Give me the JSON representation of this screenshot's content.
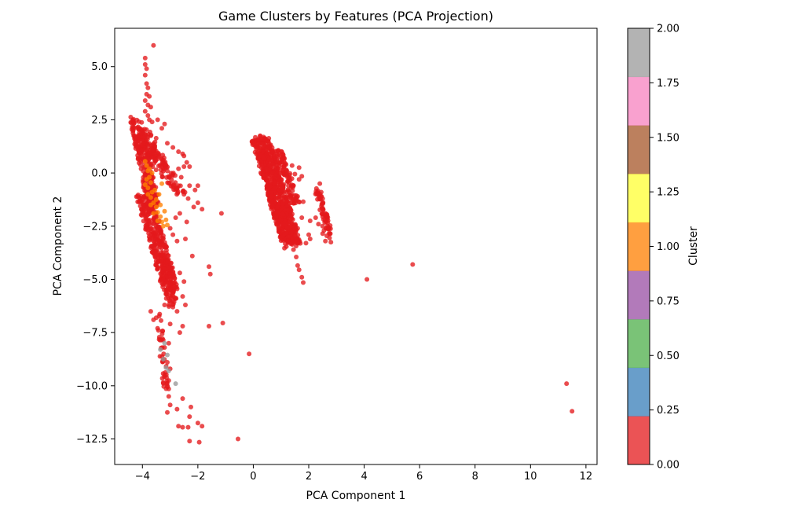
{
  "chart_data": {
    "type": "scatter",
    "title": "Game Clusters by Features (PCA Projection)",
    "xlabel": "PCA Component 1",
    "ylabel": "PCA Component 2",
    "xlim": [
      -5,
      12.4
    ],
    "ylim": [
      -13.7,
      6.8
    ],
    "xticks": [
      -4,
      -2,
      0,
      2,
      4,
      6,
      8,
      10,
      12
    ],
    "xtick_labels": [
      "−4",
      "−2",
      "0",
      "2",
      "4",
      "6",
      "8",
      "10",
      "12"
    ],
    "yticks": [
      5.0,
      2.5,
      0.0,
      -2.5,
      -5.0,
      -7.5,
      -10.0,
      -12.5
    ],
    "ytick_labels": [
      "5.0",
      "2.5",
      "0.0",
      "−2.5",
      "−5.0",
      "−7.5",
      "−10.0",
      "−12.5"
    ],
    "grid": false,
    "colorbar": {
      "label": "Cluster",
      "range": [
        0.0,
        2.0
      ],
      "ticks": [
        0.0,
        0.25,
        0.5,
        0.75,
        1.0,
        1.25,
        1.5,
        1.75,
        2.0
      ],
      "tick_labels": [
        "0.00",
        "0.25",
        "0.50",
        "0.75",
        "1.00",
        "1.25",
        "1.50",
        "1.75",
        "2.00"
      ],
      "colors": [
        "#e41a1c",
        "#377eb8",
        "#4daf4a",
        "#984ea3",
        "#ff7f00",
        "#ffff33",
        "#a65628",
        "#f781bf",
        "#999999"
      ]
    },
    "series": [
      {
        "cluster": 0,
        "color": "#e41a1c",
        "points": [
          [
            -3.9,
            5.4
          ],
          [
            -3.9,
            5.1
          ],
          [
            -3.85,
            4.9
          ],
          [
            -3.9,
            4.6
          ],
          [
            -3.85,
            4.2
          ],
          [
            -3.8,
            4.0
          ],
          [
            -3.85,
            3.7
          ],
          [
            -3.9,
            3.4
          ],
          [
            -3.75,
            3.6
          ],
          [
            -3.8,
            3.2
          ],
          [
            -3.7,
            3.1
          ],
          [
            -3.6,
            6.0
          ],
          [
            -3.9,
            2.9
          ],
          [
            -3.8,
            2.7
          ],
          [
            -3.75,
            2.5
          ],
          [
            -3.65,
            2.4
          ],
          [
            -3.45,
            2.5
          ],
          [
            -3.2,
            2.3
          ],
          [
            -3.3,
            2.1
          ],
          [
            -3.1,
            1.4
          ],
          [
            -2.9,
            1.2
          ],
          [
            -2.7,
            1.0
          ],
          [
            -2.55,
            0.9
          ],
          [
            -2.5,
            0.8
          ],
          [
            -2.7,
            0.2
          ],
          [
            -2.5,
            0.3
          ],
          [
            -2.4,
            0.5
          ],
          [
            -2.3,
            0.3
          ],
          [
            -2.6,
            -0.2
          ],
          [
            -2.3,
            -0.6
          ],
          [
            -2.1,
            -0.8
          ],
          [
            -2.0,
            -0.6
          ],
          [
            -2.5,
            -1.0
          ],
          [
            -2.35,
            -1.2
          ],
          [
            -2.15,
            -1.6
          ],
          [
            -2.0,
            -1.4
          ],
          [
            -2.65,
            -1.9
          ],
          [
            -2.4,
            -2.3
          ],
          [
            -2.8,
            -2.1
          ],
          [
            -1.85,
            -1.7
          ],
          [
            -1.15,
            -1.9
          ],
          [
            -3.0,
            -2.6
          ],
          [
            -2.9,
            -2.9
          ],
          [
            -2.75,
            -3.2
          ],
          [
            -2.45,
            -3.1
          ],
          [
            -2.2,
            -3.9
          ],
          [
            -1.6,
            -4.4
          ],
          [
            -1.55,
            -4.75
          ],
          [
            -2.5,
            -5.1
          ],
          [
            -2.65,
            -4.7
          ],
          [
            -2.55,
            -5.8
          ],
          [
            -2.45,
            -6.2
          ],
          [
            -2.75,
            -6.5
          ],
          [
            -2.9,
            -6.3
          ],
          [
            -3.2,
            -6.2
          ],
          [
            -3.5,
            -6.8
          ],
          [
            -3.7,
            -6.5
          ],
          [
            -3.6,
            -6.9
          ],
          [
            -3.0,
            -7.1
          ],
          [
            -2.55,
            -7.2
          ],
          [
            -2.65,
            -7.5
          ],
          [
            -3.05,
            -8.0
          ],
          [
            -3.2,
            -8.2
          ],
          [
            -3.25,
            -7.85
          ],
          [
            -3.1,
            -8.9
          ],
          [
            -3.0,
            -9.2
          ],
          [
            -3.2,
            -9.5
          ],
          [
            -3.05,
            -9.75
          ],
          [
            -1.6,
            -7.2
          ],
          [
            -1.1,
            -7.05
          ],
          [
            -3.25,
            -9.85
          ],
          [
            -3.05,
            -10.15
          ],
          [
            -3.05,
            -10.5
          ],
          [
            -3.0,
            -10.9
          ],
          [
            -2.75,
            -11.1
          ],
          [
            -2.55,
            -10.6
          ],
          [
            -2.25,
            -11.0
          ],
          [
            -2.3,
            -11.45
          ],
          [
            -3.1,
            -11.25
          ],
          [
            -2.7,
            -11.9
          ],
          [
            -2.55,
            -11.95
          ],
          [
            -2.35,
            -11.95
          ],
          [
            -2.0,
            -11.75
          ],
          [
            -1.85,
            -11.9
          ],
          [
            -2.3,
            -12.6
          ],
          [
            -1.95,
            -12.65
          ],
          [
            -0.55,
            -12.5
          ],
          [
            -0.15,
            -8.5
          ],
          [
            4.1,
            -5.0
          ],
          [
            5.75,
            -4.3
          ],
          [
            11.3,
            -9.9
          ],
          [
            11.5,
            -11.2
          ],
          [
            1.15,
            0.45
          ],
          [
            1.4,
            0.35
          ],
          [
            1.65,
            0.25
          ],
          [
            1.5,
            -0.05
          ],
          [
            1.65,
            -0.3
          ],
          [
            1.75,
            -0.15
          ],
          [
            1.45,
            -0.6
          ],
          [
            1.2,
            -1.3
          ],
          [
            1.6,
            -1.1
          ],
          [
            1.8,
            -1.35
          ],
          [
            1.75,
            -2.1
          ],
          [
            2.05,
            -2.25
          ],
          [
            2.25,
            -2.1
          ],
          [
            2.35,
            -2.4
          ],
          [
            1.6,
            -2.6
          ],
          [
            1.5,
            -2.95
          ],
          [
            2.0,
            -2.9
          ],
          [
            2.5,
            -2.5
          ],
          [
            2.55,
            -2.7
          ],
          [
            2.7,
            -2.6
          ],
          [
            2.65,
            -2.95
          ],
          [
            2.5,
            -2.85
          ],
          [
            2.75,
            -3.05
          ],
          [
            2.6,
            -3.2
          ],
          [
            2.4,
            -0.5
          ],
          [
            2.45,
            -0.9
          ],
          [
            2.5,
            -1.2
          ],
          [
            2.6,
            -1.9
          ],
          [
            1.25,
            -3.2
          ],
          [
            1.45,
            -3.6
          ],
          [
            1.55,
            -3.95
          ],
          [
            1.6,
            -4.35
          ],
          [
            1.65,
            -4.55
          ],
          [
            1.75,
            -4.9
          ],
          [
            1.8,
            -5.15
          ],
          [
            2.05,
            -3.1
          ],
          [
            1.9,
            -3.3
          ],
          [
            2.8,
            -3.25
          ]
        ],
        "bands": [
          {
            "x0": -4.25,
            "y0": 2.5,
            "x1": -3.6,
            "y1": -1.5,
            "x_spread": 0.22,
            "n": 230
          },
          {
            "x0": -4.0,
            "y0": 2.0,
            "x1": -3.4,
            "y1": 0.2,
            "x_spread": 0.35,
            "n": 90
          },
          {
            "x0": -3.7,
            "y0": 1.0,
            "x1": -2.6,
            "y1": -1.0,
            "x_spread": 0.25,
            "n": 70
          },
          {
            "x0": -3.95,
            "y0": -1.0,
            "x1": -2.95,
            "y1": -5.6,
            "x_spread": 0.28,
            "n": 360
          },
          {
            "x0": -3.3,
            "y0": -4.0,
            "x1": -2.9,
            "y1": -6.2,
            "x_spread": 0.18,
            "n": 60
          },
          {
            "x0": -3.45,
            "y0": -6.3,
            "x1": -3.15,
            "y1": -10.3,
            "x_spread": 0.1,
            "n": 38
          },
          {
            "x0": 0.25,
            "y0": 1.65,
            "x1": 1.4,
            "y1": -3.4,
            "x_spread": 0.34,
            "n": 700
          },
          {
            "x0": 0.9,
            "y0": 1.0,
            "x1": 1.55,
            "y1": -1.5,
            "x_spread": 0.14,
            "n": 90
          },
          {
            "x0": 0.6,
            "y0": -1.0,
            "x1": 1.5,
            "y1": -3.2,
            "x_spread": 0.14,
            "n": 60
          },
          {
            "x0": 2.3,
            "y0": -0.8,
            "x1": 2.75,
            "y1": -2.8,
            "x_spread": 0.1,
            "n": 60
          }
        ]
      },
      {
        "cluster": 1,
        "color": "#ff7f00",
        "points": [
          [
            -3.9,
            0.55
          ],
          [
            -3.85,
            0.35
          ],
          [
            -3.8,
            0.1
          ],
          [
            -3.75,
            -0.2
          ],
          [
            -3.7,
            -0.45
          ],
          [
            -3.8,
            -0.7
          ],
          [
            -3.65,
            -0.9
          ],
          [
            -3.7,
            -1.15
          ],
          [
            -3.6,
            -1.4
          ],
          [
            -3.5,
            -1.6
          ],
          [
            -3.45,
            -1.85
          ],
          [
            -3.35,
            -2.05
          ],
          [
            -3.3,
            -2.3
          ],
          [
            -3.25,
            -2.5
          ],
          [
            -3.85,
            -0.3
          ],
          [
            -3.9,
            -0.55
          ],
          [
            -3.55,
            -0.8
          ],
          [
            -3.4,
            -1.0
          ],
          [
            -3.3,
            -0.5
          ],
          [
            -3.6,
            -1.9
          ],
          [
            -3.2,
            -1.8
          ],
          [
            -3.15,
            -2.2
          ],
          [
            -3.75,
            0.2
          ],
          [
            -3.65,
            0.0
          ],
          [
            -3.5,
            -1.25
          ],
          [
            -3.35,
            -1.5
          ],
          [
            -3.1,
            -2.45
          ],
          [
            -3.8,
            -1.0
          ],
          [
            -3.7,
            -1.5
          ],
          [
            -3.45,
            -2.25
          ]
        ]
      },
      {
        "cluster": 2,
        "color": "#999999",
        "points": [
          [
            -3.2,
            -8.0
          ],
          [
            -3.35,
            -8.3
          ],
          [
            -3.1,
            -8.55
          ],
          [
            -3.25,
            -8.75
          ],
          [
            -3.05,
            -9.3
          ],
          [
            -3.15,
            -9.15
          ],
          [
            -2.8,
            -9.9
          ]
        ]
      }
    ]
  }
}
